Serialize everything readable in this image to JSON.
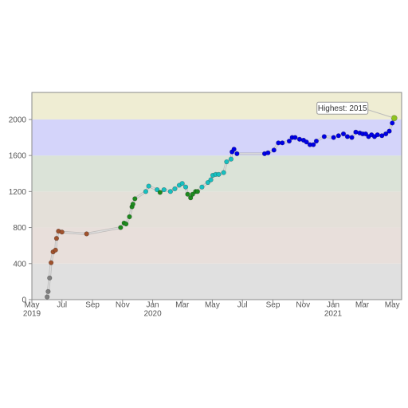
{
  "chart_data": {
    "type": "scatter",
    "title": "",
    "xlabel": "",
    "ylabel": "",
    "xlim": [
      "2019-05-01",
      "2021-05-20"
    ],
    "ylim": [
      0,
      2300
    ],
    "grid": false,
    "x_ticks": [
      {
        "date": "2019-05-01",
        "label": "May",
        "year": "2019"
      },
      {
        "date": "2019-07-01",
        "label": "Jul",
        "year": ""
      },
      {
        "date": "2019-09-01",
        "label": "Sep",
        "year": ""
      },
      {
        "date": "2019-11-01",
        "label": "Nov",
        "year": ""
      },
      {
        "date": "2020-01-01",
        "label": "Jan",
        "year": "2020"
      },
      {
        "date": "2020-03-01",
        "label": "Mar",
        "year": ""
      },
      {
        "date": "2020-05-01",
        "label": "May",
        "year": ""
      },
      {
        "date": "2020-07-01",
        "label": "Jul",
        "year": ""
      },
      {
        "date": "2020-09-01",
        "label": "Sep",
        "year": ""
      },
      {
        "date": "2020-11-01",
        "label": "Nov",
        "year": ""
      },
      {
        "date": "2021-01-01",
        "label": "Jan",
        "year": "2021"
      },
      {
        "date": "2021-03-01",
        "label": "Mar",
        "year": ""
      },
      {
        "date": "2021-05-01",
        "label": "May",
        "year": ""
      }
    ],
    "y_ticks": [
      0,
      400,
      800,
      1200,
      1600,
      2000
    ],
    "bands": [
      {
        "from": 0,
        "to": 400,
        "color": "#e0e0e0"
      },
      {
        "from": 400,
        "to": 800,
        "color": "#e8dfdb"
      },
      {
        "from": 800,
        "to": 1200,
        "color": "#e4e0d9"
      },
      {
        "from": 1200,
        "to": 1600,
        "color": "#dbe3d8"
      },
      {
        "from": 1600,
        "to": 2000,
        "color": "#dcf0ee"
      },
      {
        "from": 2000,
        "to": 2300,
        "color": "#efedd3"
      }
    ],
    "bands_overlay": [
      {
        "from": 1600,
        "to": 2000,
        "color": "#d4d4fa"
      }
    ],
    "colors": {
      "gray": "#808080",
      "brown": "#a0522d",
      "green": "#1e8a1e",
      "cyan": "#17c0c0",
      "blue": "#0000e6",
      "highest": "#8fc31f"
    },
    "points": [
      {
        "x": "2019-06-01",
        "y": 30,
        "c": "gray"
      },
      {
        "x": "2019-06-03",
        "y": 90,
        "c": "gray"
      },
      {
        "x": "2019-06-06",
        "y": 240,
        "c": "gray"
      },
      {
        "x": "2019-06-09",
        "y": 410,
        "c": "brown"
      },
      {
        "x": "2019-06-13",
        "y": 530,
        "c": "brown"
      },
      {
        "x": "2019-06-18",
        "y": 550,
        "c": "brown"
      },
      {
        "x": "2019-06-20",
        "y": 680,
        "c": "brown"
      },
      {
        "x": "2019-06-24",
        "y": 760,
        "c": "brown"
      },
      {
        "x": "2019-07-01",
        "y": 750,
        "c": "brown"
      },
      {
        "x": "2019-08-20",
        "y": 730,
        "c": "brown"
      },
      {
        "x": "2019-10-28",
        "y": 800,
        "c": "green"
      },
      {
        "x": "2019-11-04",
        "y": 850,
        "c": "green"
      },
      {
        "x": "2019-11-08",
        "y": 840,
        "c": "green"
      },
      {
        "x": "2019-11-15",
        "y": 920,
        "c": "green"
      },
      {
        "x": "2019-11-20",
        "y": 1030,
        "c": "green"
      },
      {
        "x": "2019-11-22",
        "y": 1060,
        "c": "green"
      },
      {
        "x": "2019-11-26",
        "y": 1120,
        "c": "green"
      },
      {
        "x": "2019-12-18",
        "y": 1200,
        "c": "cyan"
      },
      {
        "x": "2019-12-24",
        "y": 1260,
        "c": "cyan"
      },
      {
        "x": "2020-01-10",
        "y": 1220,
        "c": "cyan"
      },
      {
        "x": "2020-01-16",
        "y": 1190,
        "c": "green"
      },
      {
        "x": "2020-01-24",
        "y": 1220,
        "c": "cyan"
      },
      {
        "x": "2020-02-06",
        "y": 1200,
        "c": "cyan"
      },
      {
        "x": "2020-02-15",
        "y": 1230,
        "c": "cyan"
      },
      {
        "x": "2020-02-24",
        "y": 1270,
        "c": "cyan"
      },
      {
        "x": "2020-03-01",
        "y": 1290,
        "c": "cyan"
      },
      {
        "x": "2020-03-08",
        "y": 1250,
        "c": "cyan"
      },
      {
        "x": "2020-03-12",
        "y": 1170,
        "c": "green"
      },
      {
        "x": "2020-03-18",
        "y": 1130,
        "c": "green"
      },
      {
        "x": "2020-03-22",
        "y": 1170,
        "c": "green"
      },
      {
        "x": "2020-03-28",
        "y": 1200,
        "c": "green"
      },
      {
        "x": "2020-04-01",
        "y": 1200,
        "c": "green"
      },
      {
        "x": "2020-04-10",
        "y": 1250,
        "c": "cyan"
      },
      {
        "x": "2020-04-22",
        "y": 1300,
        "c": "cyan"
      },
      {
        "x": "2020-04-28",
        "y": 1330,
        "c": "cyan"
      },
      {
        "x": "2020-05-02",
        "y": 1380,
        "c": "cyan"
      },
      {
        "x": "2020-05-08",
        "y": 1390,
        "c": "cyan"
      },
      {
        "x": "2020-05-14",
        "y": 1390,
        "c": "cyan"
      },
      {
        "x": "2020-05-24",
        "y": 1410,
        "c": "cyan"
      },
      {
        "x": "2020-05-30",
        "y": 1530,
        "c": "cyan"
      },
      {
        "x": "2020-06-08",
        "y": 1560,
        "c": "cyan"
      },
      {
        "x": "2020-06-10",
        "y": 1640,
        "c": "blue"
      },
      {
        "x": "2020-06-14",
        "y": 1670,
        "c": "blue"
      },
      {
        "x": "2020-06-20",
        "y": 1620,
        "c": "blue"
      },
      {
        "x": "2020-08-15",
        "y": 1620,
        "c": "blue"
      },
      {
        "x": "2020-08-22",
        "y": 1630,
        "c": "blue"
      },
      {
        "x": "2020-09-03",
        "y": 1660,
        "c": "blue"
      },
      {
        "x": "2020-09-12",
        "y": 1740,
        "c": "blue"
      },
      {
        "x": "2020-09-20",
        "y": 1740,
        "c": "blue"
      },
      {
        "x": "2020-10-04",
        "y": 1760,
        "c": "blue"
      },
      {
        "x": "2020-10-10",
        "y": 1800,
        "c": "blue"
      },
      {
        "x": "2020-10-16",
        "y": 1800,
        "c": "blue"
      },
      {
        "x": "2020-10-25",
        "y": 1780,
        "c": "blue"
      },
      {
        "x": "2020-11-02",
        "y": 1770,
        "c": "blue"
      },
      {
        "x": "2020-11-08",
        "y": 1750,
        "c": "blue"
      },
      {
        "x": "2020-11-15",
        "y": 1720,
        "c": "blue"
      },
      {
        "x": "2020-11-22",
        "y": 1720,
        "c": "blue"
      },
      {
        "x": "2020-11-28",
        "y": 1760,
        "c": "blue"
      },
      {
        "x": "2020-12-14",
        "y": 1810,
        "c": "blue"
      },
      {
        "x": "2021-01-02",
        "y": 1800,
        "c": "blue"
      },
      {
        "x": "2021-01-12",
        "y": 1820,
        "c": "blue"
      },
      {
        "x": "2021-01-22",
        "y": 1840,
        "c": "blue"
      },
      {
        "x": "2021-01-30",
        "y": 1810,
        "c": "blue"
      },
      {
        "x": "2021-02-08",
        "y": 1800,
        "c": "blue"
      },
      {
        "x": "2021-02-16",
        "y": 1860,
        "c": "blue"
      },
      {
        "x": "2021-02-24",
        "y": 1850,
        "c": "blue"
      },
      {
        "x": "2021-03-02",
        "y": 1840,
        "c": "blue"
      },
      {
        "x": "2021-03-08",
        "y": 1840,
        "c": "blue"
      },
      {
        "x": "2021-03-14",
        "y": 1810,
        "c": "blue"
      },
      {
        "x": "2021-03-20",
        "y": 1830,
        "c": "blue"
      },
      {
        "x": "2021-03-26",
        "y": 1810,
        "c": "blue"
      },
      {
        "x": "2021-04-01",
        "y": 1830,
        "c": "blue"
      },
      {
        "x": "2021-04-10",
        "y": 1820,
        "c": "blue"
      },
      {
        "x": "2021-04-18",
        "y": 1840,
        "c": "blue"
      },
      {
        "x": "2021-04-25",
        "y": 1870,
        "c": "blue"
      },
      {
        "x": "2021-05-01",
        "y": 1960,
        "c": "blue"
      },
      {
        "x": "2021-05-05",
        "y": 2015,
        "c": "highest"
      }
    ],
    "annotation": {
      "text": "Highest: 2015",
      "x": "2021-05-05",
      "y": 2015
    }
  }
}
